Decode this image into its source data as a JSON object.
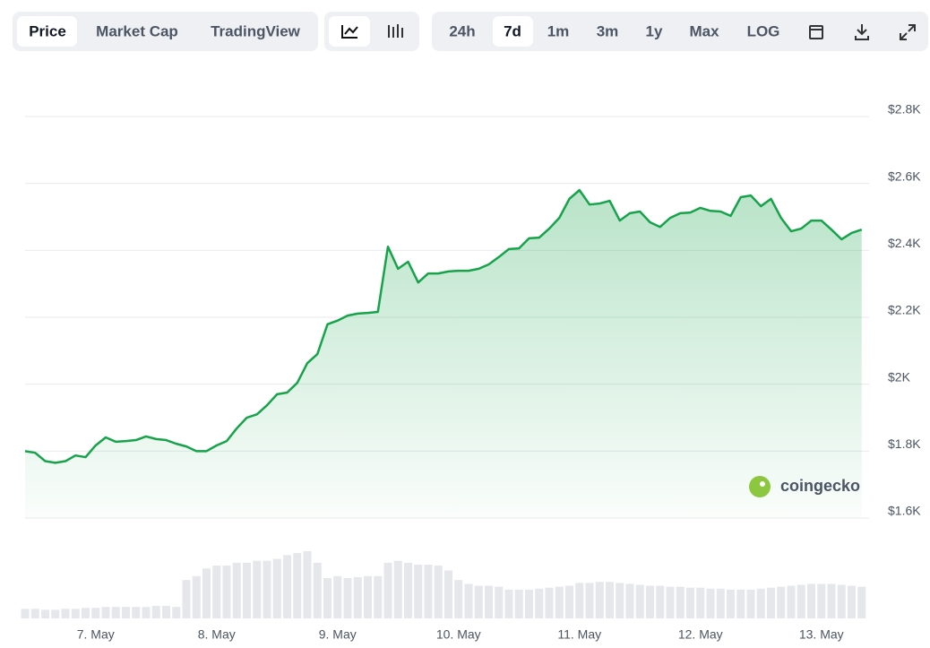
{
  "toolbar": {
    "views": [
      "Price",
      "Market Cap",
      "TradingView"
    ],
    "ranges": [
      "24h",
      "7d",
      "1m",
      "3m",
      "1y",
      "Max",
      "LOG"
    ]
  },
  "watermark": "coingecko",
  "chart_data": {
    "type": "area",
    "color": "#16a34a",
    "grid": true,
    "categories": [
      null,
      null,
      null,
      null,
      null,
      null,
      null,
      "7. May",
      null,
      null,
      null,
      null,
      null,
      null,
      null,
      null,
      null,
      null,
      null,
      "8. May",
      null,
      null,
      null,
      null,
      null,
      null,
      null,
      null,
      null,
      null,
      null,
      "9. May",
      null,
      null,
      null,
      null,
      null,
      null,
      null,
      null,
      null,
      null,
      null,
      "10. May",
      null,
      null,
      null,
      null,
      null,
      null,
      null,
      null,
      null,
      null,
      null,
      "11. May",
      null,
      null,
      null,
      null,
      null,
      null,
      null,
      null,
      null,
      null,
      null,
      "12. May",
      null,
      null,
      null,
      null,
      null,
      null,
      null,
      null,
      null,
      null,
      null,
      "13. May",
      null,
      null,
      null,
      null
    ],
    "values": [
      1800,
      1795,
      1770,
      1765,
      1770,
      1787,
      1782,
      1817,
      1841,
      1828,
      1830,
      1833,
      1844,
      1836,
      1833,
      1822,
      1814,
      1800,
      1800,
      1817,
      1830,
      1868,
      1900,
      1910,
      1937,
      1970,
      1975,
      2004,
      2063,
      2090,
      2179,
      2190,
      2205,
      2211,
      2213,
      2216,
      2411,
      2345,
      2366,
      2304,
      2331,
      2331,
      2337,
      2339,
      2339,
      2345,
      2358,
      2380,
      2404,
      2406,
      2436,
      2438,
      2465,
      2497,
      2554,
      2580,
      2537,
      2540,
      2548,
      2489,
      2511,
      2516,
      2484,
      2470,
      2497,
      2511,
      2513,
      2527,
      2518,
      2516,
      2503,
      2559,
      2564,
      2532,
      2554,
      2497,
      2457,
      2465,
      2489,
      2489,
      2462,
      2433,
      2452,
      2462
    ],
    "volume": {
      "color": "#e5e7eb",
      "values": [
        10,
        10,
        9,
        9,
        10,
        10,
        11,
        11,
        12,
        12,
        12,
        12,
        12,
        13,
        13,
        12,
        40,
        44,
        52,
        55,
        55,
        58,
        58,
        60,
        60,
        62,
        66,
        68,
        70,
        58,
        42,
        44,
        42,
        43,
        44,
        44,
        58,
        60,
        58,
        56,
        56,
        55,
        50,
        40,
        36,
        34,
        34,
        33,
        30,
        30,
        30,
        31,
        32,
        33,
        34,
        37,
        37,
        38,
        38,
        37,
        36,
        35,
        34,
        34,
        33,
        33,
        32,
        32,
        31,
        31,
        30,
        30,
        30,
        31,
        32,
        33,
        34,
        35,
        36,
        36,
        36,
        35,
        34,
        33
      ]
    },
    "ylim": [
      1600,
      2800
    ],
    "yticks": [
      {
        "value": 1600,
        "label": "$1.6K"
      },
      {
        "value": 1800,
        "label": "$1.8K"
      },
      {
        "value": 2000,
        "label": "$2K"
      },
      {
        "value": 2200,
        "label": "$2.2K"
      },
      {
        "value": 2400,
        "label": "$2.4K"
      },
      {
        "value": 2600,
        "label": "$2.6K"
      },
      {
        "value": 2800,
        "label": "$2.8K"
      }
    ]
  }
}
